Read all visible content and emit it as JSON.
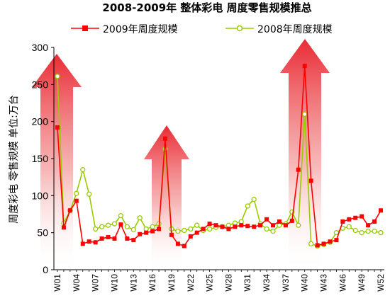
{
  "chart_data": {
    "type": "line",
    "title": "2008-2009年 整体彩电 周度零售规模推总",
    "ylabel": "周度彩电 零售规模 单位:万台",
    "xlabel": "",
    "ylim": [
      0,
      300
    ],
    "yticks": [
      0,
      50,
      100,
      150,
      200,
      250,
      300
    ],
    "xtick_labels": [
      "W01",
      "W04",
      "W07",
      "W10",
      "W13",
      "W16",
      "W19",
      "W22",
      "W25",
      "W28",
      "W31",
      "W34",
      "W37",
      "W40",
      "W43",
      "W46",
      "W49",
      "W52"
    ],
    "grid": false,
    "legend_position": "top",
    "x": [
      "W01",
      "W02",
      "W03",
      "W04",
      "W05",
      "W06",
      "W07",
      "W08",
      "W09",
      "W10",
      "W11",
      "W12",
      "W13",
      "W14",
      "W15",
      "W16",
      "W17",
      "W18",
      "W19",
      "W20",
      "W21",
      "W22",
      "W23",
      "W24",
      "W25",
      "W26",
      "W27",
      "W28",
      "W29",
      "W30",
      "W31",
      "W32",
      "W33",
      "W34",
      "W35",
      "W36",
      "W37",
      "W38",
      "W39",
      "W40",
      "W41",
      "W42",
      "W43",
      "W44",
      "W45",
      "W46",
      "W47",
      "W48",
      "W49",
      "W50",
      "W51",
      "W52"
    ],
    "series": [
      {
        "name": "2009年周度规模",
        "color": "#ff0000",
        "values": [
          192,
          57,
          80,
          93,
          35,
          38,
          37,
          42,
          44,
          42,
          61,
          42,
          40,
          48,
          50,
          52,
          55,
          177,
          47,
          35,
          32,
          45,
          50,
          55,
          62,
          60,
          58,
          55,
          58,
          60,
          59,
          58,
          60,
          68,
          60,
          65,
          60,
          66,
          135,
          275,
          120,
          33,
          35,
          38,
          40,
          65,
          68,
          70,
          72,
          60,
          65,
          80
        ]
      },
      {
        "name": "2008年周度规模",
        "color": "#99cc00",
        "values": [
          261,
          63,
          80,
          103,
          135,
          102,
          55,
          58,
          60,
          62,
          73,
          58,
          54,
          70,
          55,
          58,
          62,
          163,
          55,
          52,
          53,
          55,
          60,
          53,
          55,
          57,
          58,
          60,
          63,
          65,
          86,
          95,
          62,
          55,
          52,
          60,
          62,
          78,
          60,
          210,
          35,
          32,
          34,
          37,
          50,
          56,
          58,
          53,
          50,
          52,
          52,
          50
        ]
      }
    ]
  }
}
